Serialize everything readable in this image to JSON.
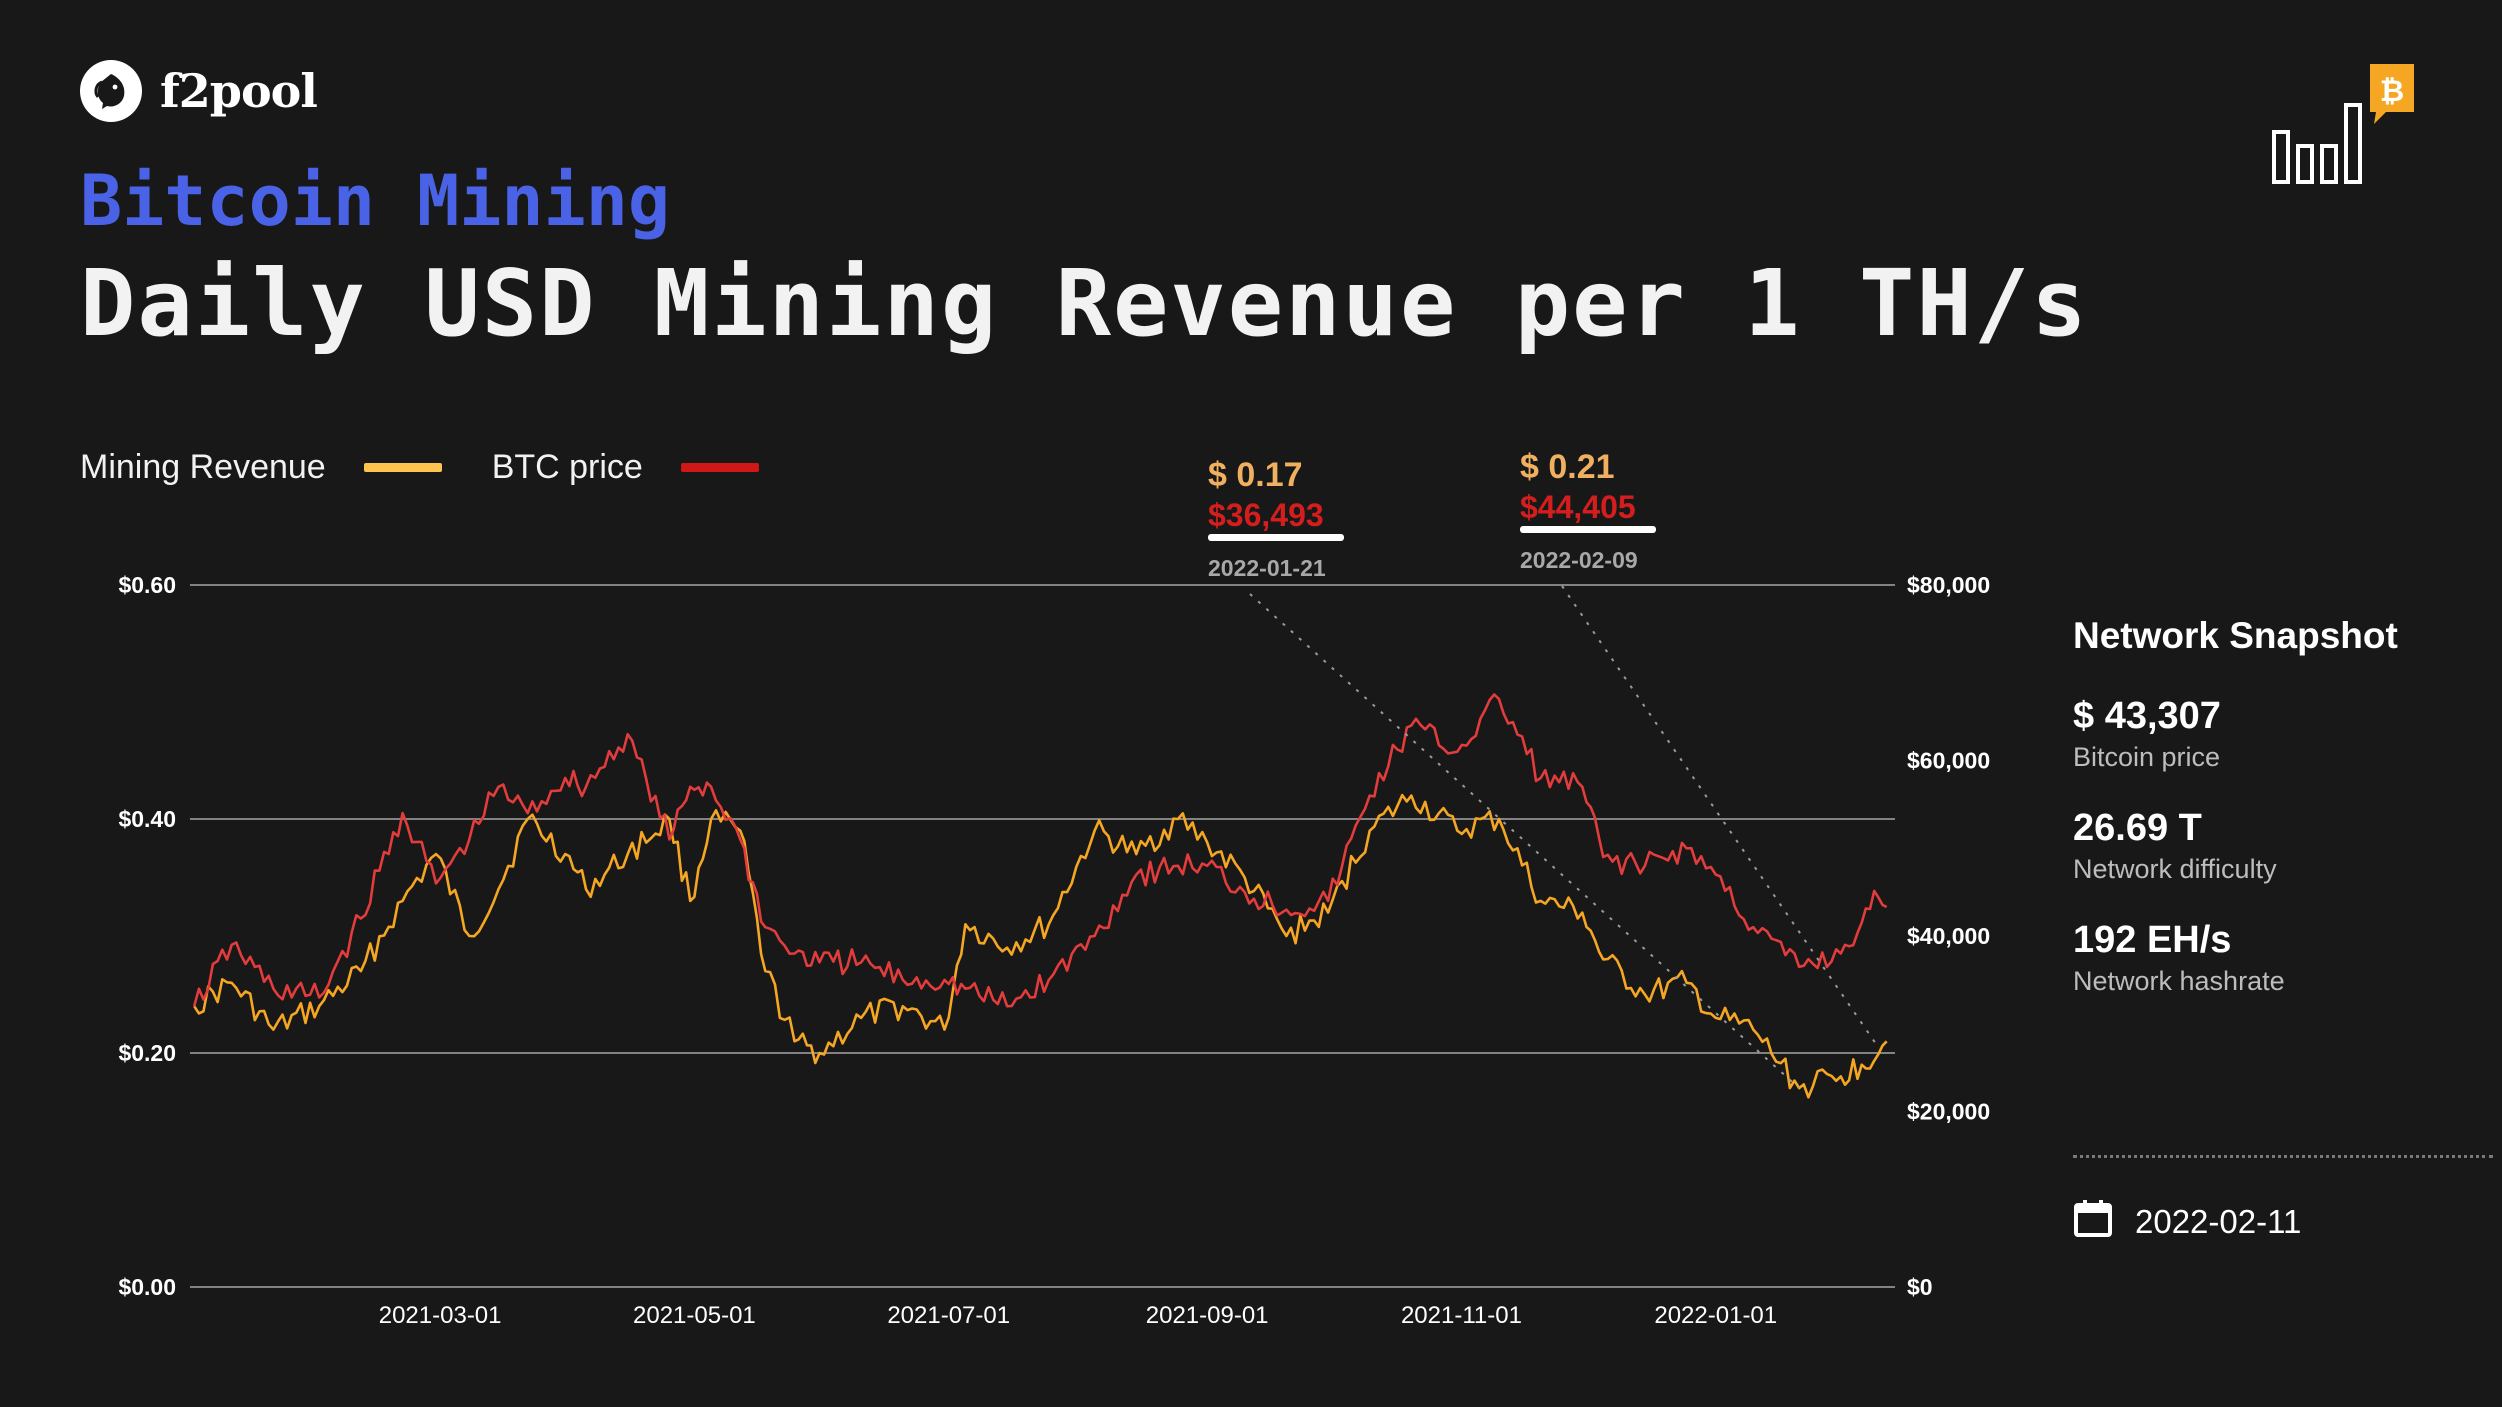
{
  "brand": {
    "name": "f2pool",
    "logo_icon": "fish-logo-icon"
  },
  "header": {
    "subtitle": "Bitcoin Mining",
    "title": "Daily USD Mining Revenue per 1 TH/s",
    "corner_icon": "bitcoin-bar-chart-icon"
  },
  "colors": {
    "background": "#181818",
    "revenue": "#f5a623",
    "revenue_legend": "#ffc44d",
    "btc": "#e23c3c",
    "btc_legend": "#d01818",
    "accent": "#4a63e6"
  },
  "chart_data": {
    "type": "line",
    "series": [
      {
        "name": "Mining Revenue",
        "axis": "left",
        "unit": "USD per TH/s per day",
        "points": [
          [
            "2021-01-01",
            0.24
          ],
          [
            "2021-01-10",
            0.26
          ],
          [
            "2021-01-20",
            0.22
          ],
          [
            "2021-01-31",
            0.24
          ],
          [
            "2021-02-10",
            0.27
          ],
          [
            "2021-02-20",
            0.33
          ],
          [
            "2021-02-28",
            0.37
          ],
          [
            "2021-03-08",
            0.3
          ],
          [
            "2021-03-15",
            0.34
          ],
          [
            "2021-03-22",
            0.4
          ],
          [
            "2021-03-31",
            0.37
          ],
          [
            "2021-04-05",
            0.34
          ],
          [
            "2021-04-15",
            0.37
          ],
          [
            "2021-04-25",
            0.4
          ],
          [
            "2021-04-30",
            0.33
          ],
          [
            "2021-05-05",
            0.4
          ],
          [
            "2021-05-12",
            0.39
          ],
          [
            "2021-05-18",
            0.27
          ],
          [
            "2021-05-25",
            0.21
          ],
          [
            "2021-05-31",
            0.2
          ],
          [
            "2021-06-10",
            0.23
          ],
          [
            "2021-06-20",
            0.24
          ],
          [
            "2021-06-30",
            0.22
          ],
          [
            "2021-07-05",
            0.31
          ],
          [
            "2021-07-15",
            0.29
          ],
          [
            "2021-07-25",
            0.31
          ],
          [
            "2021-08-05",
            0.39
          ],
          [
            "2021-08-15",
            0.37
          ],
          [
            "2021-08-25",
            0.4
          ],
          [
            "2021-09-01",
            0.38
          ],
          [
            "2021-09-10",
            0.35
          ],
          [
            "2021-09-20",
            0.3
          ],
          [
            "2021-09-30",
            0.32
          ],
          [
            "2021-10-10",
            0.39
          ],
          [
            "2021-10-20",
            0.42
          ],
          [
            "2021-10-31",
            0.39
          ],
          [
            "2021-11-10",
            0.4
          ],
          [
            "2021-11-20",
            0.33
          ],
          [
            "2021-11-30",
            0.32
          ],
          [
            "2021-12-05",
            0.28
          ],
          [
            "2021-12-15",
            0.25
          ],
          [
            "2021-12-25",
            0.26
          ],
          [
            "2022-01-01",
            0.23
          ],
          [
            "2022-01-10",
            0.22
          ],
          [
            "2022-01-21",
            0.17
          ],
          [
            "2022-01-31",
            0.18
          ],
          [
            "2022-02-05",
            0.19
          ],
          [
            "2022-02-11",
            0.21
          ]
        ]
      },
      {
        "name": "BTC price",
        "axis": "right",
        "unit": "USD",
        "points": [
          [
            "2021-01-01",
            32000
          ],
          [
            "2021-01-10",
            39000
          ],
          [
            "2021-01-20",
            34000
          ],
          [
            "2021-01-31",
            33000
          ],
          [
            "2021-02-10",
            42000
          ],
          [
            "2021-02-20",
            54000
          ],
          [
            "2021-02-28",
            46000
          ],
          [
            "2021-03-08",
            51000
          ],
          [
            "2021-03-15",
            57000
          ],
          [
            "2021-03-22",
            54000
          ],
          [
            "2021-03-31",
            58000
          ],
          [
            "2021-04-05",
            57000
          ],
          [
            "2021-04-15",
            63000
          ],
          [
            "2021-04-25",
            51000
          ],
          [
            "2021-04-30",
            57000
          ],
          [
            "2021-05-05",
            57000
          ],
          [
            "2021-05-12",
            51000
          ],
          [
            "2021-05-18",
            41000
          ],
          [
            "2021-05-25",
            38000
          ],
          [
            "2021-05-31",
            37000
          ],
          [
            "2021-06-10",
            37000
          ],
          [
            "2021-06-20",
            35000
          ],
          [
            "2021-06-30",
            35000
          ],
          [
            "2021-07-05",
            34000
          ],
          [
            "2021-07-15",
            32000
          ],
          [
            "2021-07-25",
            35000
          ],
          [
            "2021-08-05",
            40000
          ],
          [
            "2021-08-15",
            47000
          ],
          [
            "2021-08-25",
            48000
          ],
          [
            "2021-09-01",
            48000
          ],
          [
            "2021-09-10",
            45000
          ],
          [
            "2021-09-20",
            43000
          ],
          [
            "2021-09-30",
            44000
          ],
          [
            "2021-10-10",
            56000
          ],
          [
            "2021-10-20",
            64000
          ],
          [
            "2021-10-31",
            61000
          ],
          [
            "2021-11-10",
            67000
          ],
          [
            "2021-11-20",
            58000
          ],
          [
            "2021-11-30",
            57000
          ],
          [
            "2021-12-05",
            49000
          ],
          [
            "2021-12-15",
            48000
          ],
          [
            "2021-12-25",
            50000
          ],
          [
            "2022-01-01",
            47000
          ],
          [
            "2022-01-10",
            41000
          ],
          [
            "2022-01-21",
            36493
          ],
          [
            "2022-01-31",
            38000
          ],
          [
            "2022-02-05",
            41500
          ],
          [
            "2022-02-09",
            44405
          ],
          [
            "2022-02-11",
            43307
          ]
        ]
      }
    ],
    "y_left": {
      "range": [
        0,
        0.6
      ],
      "ticks": [
        "$0.00",
        "$0.20",
        "$0.40",
        "$0.60"
      ]
    },
    "y_right": {
      "range": [
        0,
        80000
      ],
      "ticks": [
        "$0",
        "$20,000",
        "$40,000",
        "$60,000",
        "$80,000"
      ]
    },
    "x_range": [
      "2020-12-31",
      "2022-02-13"
    ],
    "x_ticks": [
      "2021-03-01",
      "2021-05-01",
      "2021-07-01",
      "2021-09-01",
      "2021-11-01",
      "2022-01-01"
    ],
    "grid": "horizontal",
    "legend_position": "top-left",
    "annotations": [
      {
        "date": "2022-01-21",
        "revenue": "$ 0.17",
        "price": "$36,493"
      },
      {
        "date": "2022-02-09",
        "revenue": "$ 0.21",
        "price": "$44,405"
      }
    ]
  },
  "snapshot": {
    "title": "Network Snapshot",
    "metrics": [
      {
        "value": "$ 43,307",
        "label": "Bitcoin price"
      },
      {
        "value": "26.69 T",
        "label": "Network difficulty"
      },
      {
        "value": "192 EH/s",
        "label": "Network hashrate"
      }
    ],
    "date": "2022-02-11",
    "date_icon": "calendar-icon"
  }
}
